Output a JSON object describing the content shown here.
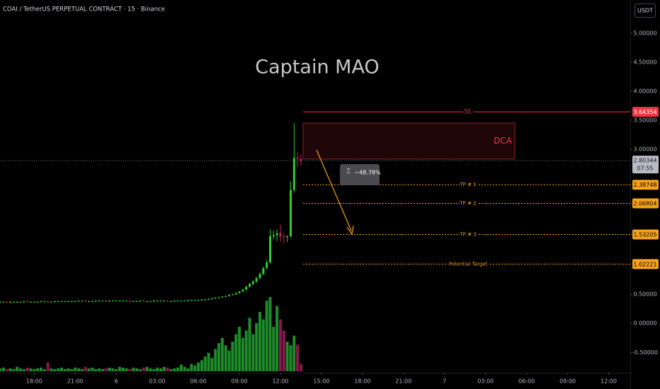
{
  "chart_data": {
    "type": "candlestick",
    "title": "COAI / TetherUS PERPETUAL CONTRACT · 15 · Binance",
    "watermark": "Captain MAO",
    "currency": "USDT",
    "up_color": "#2ecc2e",
    "down_color": "#d81b60",
    "volume_up_color": "#1e8c2a",
    "volume_down_color": "#8e1650",
    "xlim": [
      0,
      184.3
    ],
    "xticks": [
      {
        "value": 10,
        "label": "18:00"
      },
      {
        "value": 22,
        "label": "21:00"
      },
      {
        "value": 34,
        "label": "6"
      },
      {
        "value": 46,
        "label": "03:00"
      },
      {
        "value": 58,
        "label": "06:00"
      },
      {
        "value": 70,
        "label": "09:00"
      },
      {
        "value": 82,
        "label": "12:00"
      },
      {
        "value": 94,
        "label": "15:00"
      },
      {
        "value": 106,
        "label": "18:00"
      },
      {
        "value": 118,
        "label": "21:00"
      },
      {
        "value": 130,
        "label": "7"
      },
      {
        "value": 142,
        "label": "03:00"
      },
      {
        "value": 154,
        "label": "06:00"
      },
      {
        "value": 166,
        "label": "09:00"
      },
      {
        "value": 178,
        "label": "12:00"
      }
    ],
    "ylim": [
      -0.85,
      5.57
    ],
    "yticks": [
      {
        "value": 5,
        "label": "5.00000"
      },
      {
        "value": 4.5,
        "label": "4.50000"
      },
      {
        "value": 4,
        "label": "4.00000"
      },
      {
        "value": 3.5,
        "label": "3.50000"
      },
      {
        "value": 3,
        "label": "3.00000"
      },
      {
        "value": 0.5,
        "label": "0.50000"
      },
      {
        "value": 0,
        "label": "0.00000"
      },
      {
        "value": -0.5,
        "label": "-0.50000"
      }
    ],
    "open": [
      0.37,
      0.37,
      0.37,
      0.36,
      0.37,
      0.37,
      0.37,
      0.37,
      0.38,
      0.37,
      0.37,
      0.37,
      0.37,
      0.38,
      0.38,
      0.37,
      0.37,
      0.38,
      0.38,
      0.38,
      0.38,
      0.38,
      0.38,
      0.38,
      0.39,
      0.39,
      0.38,
      0.38,
      0.38,
      0.39,
      0.39,
      0.39,
      0.38,
      0.39,
      0.39,
      0.39,
      0.39,
      0.39,
      0.39,
      0.38,
      0.38,
      0.38,
      0.39,
      0.38,
      0.38,
      0.38,
      0.39,
      0.39,
      0.39,
      0.39,
      0.38,
      0.38,
      0.39,
      0.39,
      0.39,
      0.39,
      0.4,
      0.4,
      0.4,
      0.4,
      0.41,
      0.41,
      0.42,
      0.43,
      0.44,
      0.45,
      0.46,
      0.47,
      0.49,
      0.5,
      0.52,
      0.55,
      0.58,
      0.63,
      0.68,
      0.72,
      0.78,
      0.85,
      0.95,
      1.05,
      1.5,
      1.52,
      1.55,
      1.5,
      1.49,
      1.5,
      2.3,
      2.85,
      2.83
    ],
    "high": [
      0.38,
      0.38,
      0.38,
      0.38,
      0.38,
      0.38,
      0.38,
      0.39,
      0.39,
      0.38,
      0.38,
      0.38,
      0.39,
      0.39,
      0.39,
      0.38,
      0.39,
      0.39,
      0.39,
      0.39,
      0.39,
      0.39,
      0.39,
      0.4,
      0.4,
      0.4,
      0.39,
      0.39,
      0.4,
      0.4,
      0.4,
      0.4,
      0.4,
      0.4,
      0.4,
      0.4,
      0.4,
      0.4,
      0.4,
      0.39,
      0.39,
      0.4,
      0.4,
      0.39,
      0.39,
      0.4,
      0.4,
      0.4,
      0.4,
      0.4,
      0.39,
      0.4,
      0.4,
      0.4,
      0.4,
      0.41,
      0.41,
      0.41,
      0.41,
      0.42,
      0.42,
      0.43,
      0.44,
      0.45,
      0.46,
      0.47,
      0.48,
      0.5,
      0.51,
      0.53,
      0.56,
      0.6,
      0.65,
      0.7,
      0.75,
      0.8,
      0.88,
      0.98,
      1.1,
      1.62,
      1.6,
      1.62,
      1.7,
      1.55,
      1.52,
      2.45,
      3.45,
      2.95,
      2.9
    ],
    "low": [
      0.36,
      0.36,
      0.35,
      0.35,
      0.36,
      0.36,
      0.36,
      0.36,
      0.36,
      0.36,
      0.36,
      0.36,
      0.36,
      0.37,
      0.36,
      0.36,
      0.36,
      0.37,
      0.37,
      0.37,
      0.37,
      0.37,
      0.37,
      0.37,
      0.38,
      0.37,
      0.37,
      0.37,
      0.37,
      0.38,
      0.38,
      0.37,
      0.37,
      0.38,
      0.38,
      0.38,
      0.38,
      0.38,
      0.37,
      0.37,
      0.37,
      0.37,
      0.37,
      0.37,
      0.37,
      0.37,
      0.38,
      0.38,
      0.38,
      0.37,
      0.37,
      0.37,
      0.38,
      0.38,
      0.38,
      0.38,
      0.39,
      0.39,
      0.39,
      0.39,
      0.4,
      0.4,
      0.41,
      0.42,
      0.43,
      0.44,
      0.45,
      0.46,
      0.48,
      0.49,
      0.51,
      0.54,
      0.57,
      0.62,
      0.66,
      0.7,
      0.76,
      0.83,
      0.93,
      1.03,
      1.45,
      1.42,
      1.4,
      1.38,
      1.4,
      1.48,
      2.25,
      2.7,
      2.72
    ],
    "close": [
      0.37,
      0.37,
      0.36,
      0.37,
      0.37,
      0.37,
      0.37,
      0.38,
      0.37,
      0.37,
      0.37,
      0.37,
      0.38,
      0.38,
      0.37,
      0.37,
      0.38,
      0.38,
      0.38,
      0.38,
      0.38,
      0.38,
      0.38,
      0.39,
      0.39,
      0.38,
      0.38,
      0.38,
      0.39,
      0.39,
      0.39,
      0.38,
      0.39,
      0.39,
      0.39,
      0.39,
      0.39,
      0.39,
      0.38,
      0.38,
      0.38,
      0.39,
      0.38,
      0.38,
      0.38,
      0.39,
      0.39,
      0.39,
      0.39,
      0.38,
      0.38,
      0.39,
      0.39,
      0.39,
      0.39,
      0.4,
      0.4,
      0.4,
      0.4,
      0.41,
      0.41,
      0.42,
      0.43,
      0.44,
      0.45,
      0.46,
      0.47,
      0.49,
      0.5,
      0.52,
      0.55,
      0.58,
      0.63,
      0.68,
      0.72,
      0.78,
      0.85,
      0.95,
      1.05,
      1.5,
      1.52,
      1.55,
      1.5,
      1.49,
      1.5,
      2.3,
      2.85,
      2.83,
      2.8
    ],
    "volume": [
      4,
      5,
      3,
      4,
      3,
      6,
      4,
      3,
      5,
      4,
      3,
      4,
      5,
      3,
      12,
      4,
      3,
      4,
      5,
      3,
      4,
      3,
      5,
      4,
      3,
      6,
      4,
      5,
      3,
      4,
      3,
      4,
      5,
      4,
      3,
      6,
      5,
      4,
      3,
      5,
      4,
      3,
      5,
      6,
      4,
      3,
      5,
      4,
      6,
      5,
      3,
      4,
      5,
      9,
      6,
      4,
      10,
      8,
      12,
      15,
      20,
      25,
      18,
      30,
      38,
      45,
      35,
      28,
      40,
      50,
      60,
      45,
      55,
      72,
      50,
      65,
      80,
      70,
      95,
      100,
      60,
      88,
      70,
      55,
      40,
      35,
      48,
      36,
      10
    ],
    "current_price": {
      "value": 2.80344,
      "countdown": "07:55"
    },
    "dca_zone": {
      "label": "DCA",
      "range": [
        2.83,
        3.45
      ]
    },
    "measure_label": "−48.78%",
    "levels": [
      {
        "label": "SL",
        "value": 3.64354,
        "color": "#f23645",
        "dashed": false
      },
      {
        "label": "TP # 1",
        "value": 2.38748,
        "color": "#f7a21b",
        "dashed": true
      },
      {
        "label": "TP # 2",
        "value": 2.06804,
        "color": "#f7a21b",
        "dashed": true
      },
      {
        "label": "TP # 3",
        "value": 1.53205,
        "color": "#f7a21b",
        "dashed": true
      },
      {
        "label": "Potential Target",
        "value": 1.02221,
        "color": "#f7a21b",
        "dashed": true
      }
    ]
  }
}
